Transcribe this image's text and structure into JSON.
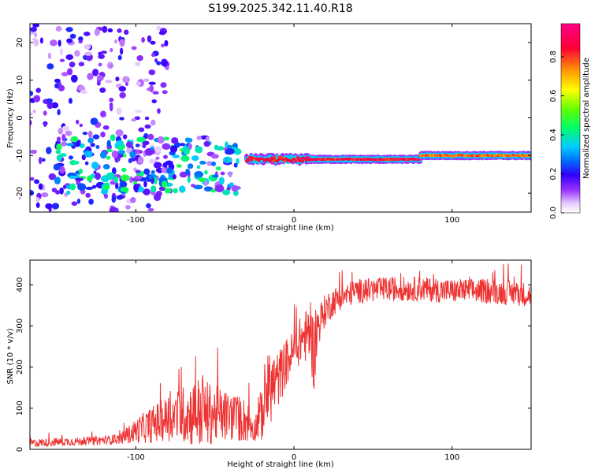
{
  "title": "S199.2025.342.11.40.R18",
  "chart_data": [
    {
      "type": "heatmap",
      "name": "spectrogram",
      "xlabel": "Height of straight line (km)",
      "ylabel": "Frequency (Hz)",
      "xlim": [
        -167,
        150
      ],
      "ylim": [
        -25,
        25
      ],
      "xticks": [
        -100,
        0,
        100
      ],
      "yticks": [
        -20,
        -10,
        0,
        10,
        20
      ],
      "colorbar": {
        "label": "Normalized spectral amplitude",
        "range": [
          0,
          0.97
        ],
        "ticks": [
          0,
          0.2,
          0.4,
          0.6,
          0.8
        ],
        "colors": [
          "#ffffff",
          "#cc99ff",
          "#6600ff",
          "#0000ff",
          "#00ccff",
          "#00ff66",
          "#66ff00",
          "#ffff00",
          "#ff8800",
          "#ff0033",
          "#ff0088"
        ]
      },
      "ridge": {
        "description": "strong narrow band near -11 Hz",
        "segments": [
          {
            "x0": -30,
            "x1": 80,
            "freq": -11,
            "amplitude": 0.95
          },
          {
            "x0": 80,
            "x1": 150,
            "freq": -10,
            "amplitude": 0.85
          }
        ]
      },
      "scatter_region": {
        "x0": -167,
        "x1": -110,
        "freq_range": [
          -25,
          25
        ],
        "amplitude": 0.2
      },
      "cluster_region": {
        "x0": -150,
        "x1": -35,
        "freq_range": [
          -20,
          -5
        ],
        "amplitude": 0.4
      }
    },
    {
      "type": "line",
      "name": "snr",
      "xlabel": "Height of straight line (km)",
      "ylabel": "SNR (10 * v/v)",
      "xlim": [
        -167,
        150
      ],
      "ylim": [
        0,
        460
      ],
      "xticks": [
        -100,
        0,
        100
      ],
      "yticks": [
        0,
        100,
        200,
        300,
        400
      ],
      "color": "#ee3333",
      "x": [
        -167,
        -150,
        -130,
        -110,
        -100,
        -90,
        -80,
        -70,
        -60,
        -50,
        -40,
        -30,
        -25,
        -20,
        -15,
        -10,
        -5,
        0,
        5,
        10,
        13,
        15,
        20,
        25,
        30,
        40,
        60,
        80,
        100,
        120,
        140,
        150
      ],
      "mean": [
        15,
        18,
        20,
        25,
        45,
        60,
        75,
        85,
        90,
        85,
        80,
        70,
        50,
        90,
        150,
        170,
        210,
        240,
        270,
        280,
        230,
        300,
        340,
        360,
        370,
        385,
        390,
        390,
        385,
        385,
        380,
        375
      ],
      "amp": [
        10,
        10,
        10,
        12,
        30,
        45,
        55,
        70,
        90,
        70,
        60,
        55,
        30,
        70,
        90,
        70,
        60,
        50,
        60,
        70,
        100,
        50,
        40,
        35,
        30,
        30,
        30,
        30,
        30,
        30,
        30,
        30
      ]
    }
  ]
}
